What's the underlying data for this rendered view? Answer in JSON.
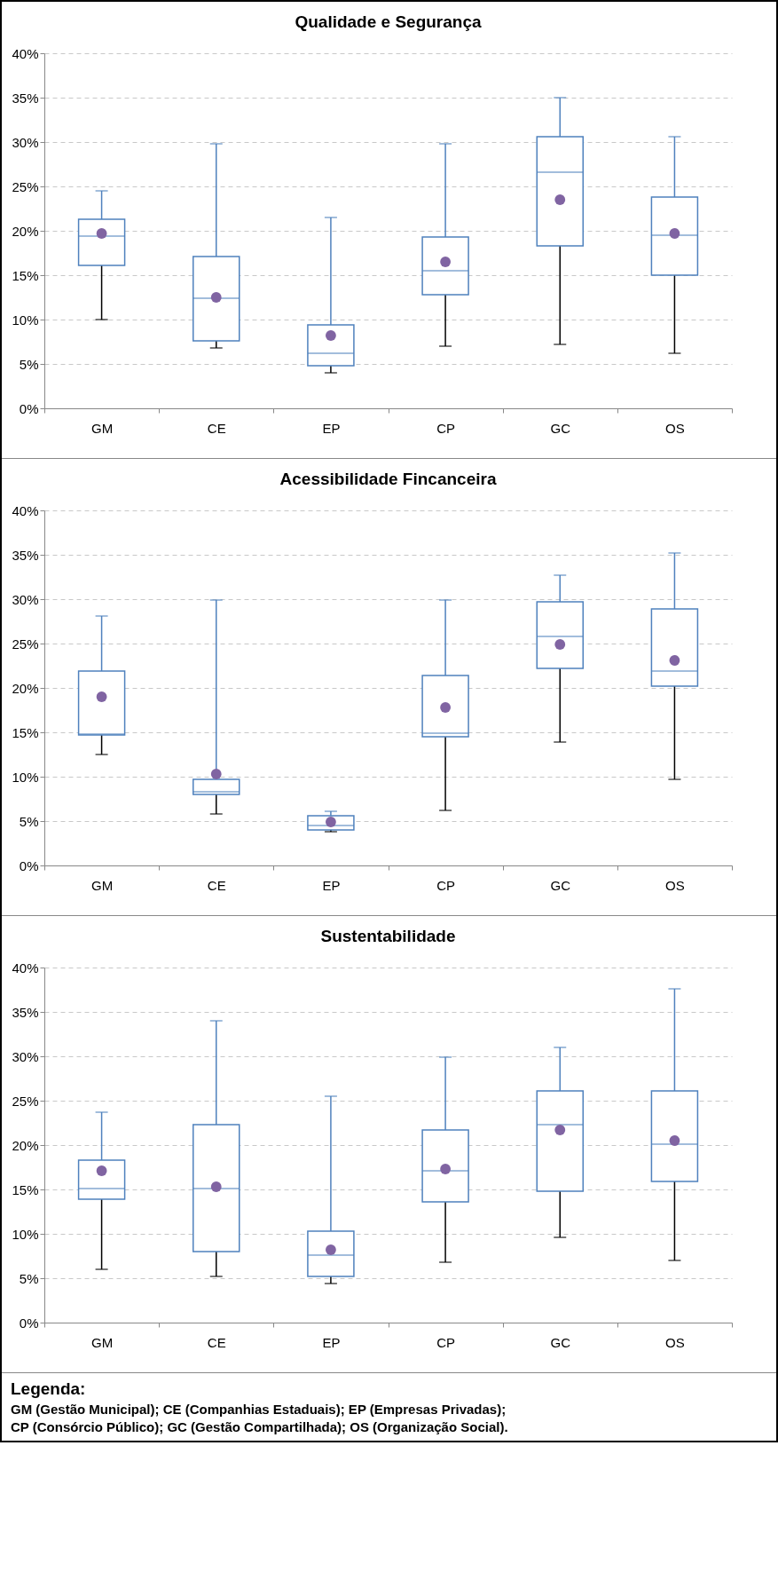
{
  "chart_data": [
    {
      "type": "box",
      "title": "Qualidade e Segurança",
      "categories": [
        "GM",
        "CE",
        "EP",
        "CP",
        "GC",
        "OS"
      ],
      "ylim": [
        0,
        40
      ],
      "yticks": [
        {
          "value": 0,
          "label": "0%"
        },
        {
          "value": 5,
          "label": "5%"
        },
        {
          "value": 10,
          "label": "10%"
        },
        {
          "value": 15,
          "label": "15%"
        },
        {
          "value": 20,
          "label": "20%"
        },
        {
          "value": 25,
          "label": "25%"
        },
        {
          "value": 30,
          "label": "30%"
        },
        {
          "value": 35,
          "label": "35%"
        },
        {
          "value": 40,
          "label": "40%"
        }
      ],
      "grid": "y",
      "series": [
        {
          "color": "#4f81bd",
          "boxes": [
            {
              "low": 10.0,
              "q1": 16.1,
              "median": 19.4,
              "q3": 21.3,
              "high": 24.5,
              "mean": 19.7
            },
            {
              "low": 6.8,
              "q1": 7.6,
              "median": 12.4,
              "q3": 17.1,
              "high": 29.8,
              "mean": 12.5
            },
            {
              "low": 4.0,
              "q1": 4.8,
              "median": 6.2,
              "q3": 9.4,
              "high": 21.5,
              "mean": 8.2
            },
            {
              "low": 7.0,
              "q1": 12.8,
              "median": 15.5,
              "q3": 19.3,
              "high": 29.8,
              "mean": 16.5
            },
            {
              "low": 7.2,
              "q1": 18.3,
              "median": 26.6,
              "q3": 30.6,
              "high": 35.0,
              "mean": 23.5
            },
            {
              "low": 6.2,
              "q1": 15.0,
              "median": 19.5,
              "q3": 23.8,
              "high": 30.6,
              "mean": 19.7
            }
          ]
        }
      ]
    },
    {
      "type": "box",
      "title": "Acessibilidade Fincanceira",
      "categories": [
        "GM",
        "CE",
        "EP",
        "CP",
        "GC",
        "OS"
      ],
      "ylim": [
        0,
        40
      ],
      "yticks": [
        {
          "value": 0,
          "label": "0%"
        },
        {
          "value": 5,
          "label": "5%"
        },
        {
          "value": 10,
          "label": "10%"
        },
        {
          "value": 15,
          "label": "15%"
        },
        {
          "value": 20,
          "label": "20%"
        },
        {
          "value": 25,
          "label": "25%"
        },
        {
          "value": 30,
          "label": "30%"
        },
        {
          "value": 35,
          "label": "35%"
        },
        {
          "value": 40,
          "label": "40%"
        }
      ],
      "grid": "y",
      "series": [
        {
          "color": "#4f81bd",
          "boxes": [
            {
              "low": 12.5,
              "q1": 14.7,
              "median": 14.8,
              "q3": 21.9,
              "high": 28.1,
              "mean": 19.0
            },
            {
              "low": 5.8,
              "q1": 8.0,
              "median": 8.3,
              "q3": 9.7,
              "high": 29.9,
              "mean": 10.3
            },
            {
              "low": 3.8,
              "q1": 4.0,
              "median": 4.5,
              "q3": 5.6,
              "high": 6.1,
              "mean": 4.9
            },
            {
              "low": 6.2,
              "q1": 14.5,
              "median": 14.9,
              "q3": 21.4,
              "high": 29.9,
              "mean": 17.8
            },
            {
              "low": 13.9,
              "q1": 22.2,
              "median": 25.8,
              "q3": 29.7,
              "high": 32.7,
              "mean": 24.9
            },
            {
              "low": 9.7,
              "q1": 20.2,
              "median": 21.9,
              "q3": 28.9,
              "high": 35.2,
              "mean": 23.1
            }
          ]
        }
      ]
    },
    {
      "type": "box",
      "title": "Sustentabilidade",
      "categories": [
        "GM",
        "CE",
        "EP",
        "CP",
        "GC",
        "OS"
      ],
      "ylim": [
        0,
        40
      ],
      "yticks": [
        {
          "value": 0,
          "label": "0%"
        },
        {
          "value": 5,
          "label": "5%"
        },
        {
          "value": 10,
          "label": "10%"
        },
        {
          "value": 15,
          "label": "15%"
        },
        {
          "value": 20,
          "label": "20%"
        },
        {
          "value": 25,
          "label": "25%"
        },
        {
          "value": 30,
          "label": "30%"
        },
        {
          "value": 35,
          "label": "35%"
        },
        {
          "value": 40,
          "label": "40%"
        }
      ],
      "grid": "y",
      "series": [
        {
          "color": "#4f81bd",
          "boxes": [
            {
              "low": 6.0,
              "q1": 13.9,
              "median": 15.1,
              "q3": 18.3,
              "high": 23.7,
              "mean": 17.1
            },
            {
              "low": 5.2,
              "q1": 8.0,
              "median": 15.1,
              "q3": 22.3,
              "high": 34.0,
              "mean": 15.3
            },
            {
              "low": 4.4,
              "q1": 5.2,
              "median": 7.6,
              "q3": 10.3,
              "high": 25.5,
              "mean": 8.2
            },
            {
              "low": 6.8,
              "q1": 13.6,
              "median": 17.1,
              "q3": 21.7,
              "high": 29.9,
              "mean": 17.3
            },
            {
              "low": 9.6,
              "q1": 14.8,
              "median": 22.3,
              "q3": 26.1,
              "high": 31.0,
              "mean": 21.7
            },
            {
              "low": 7.0,
              "q1": 15.9,
              "median": 20.1,
              "q3": 26.1,
              "high": 37.6,
              "mean": 20.5
            }
          ]
        }
      ],
      "annotations": [
        "Legenda:",
        "GM (Gestão Municipal); CE (Companhias Estaduais); EP (Empresas Privadas);",
        "CP (Consórcio Público); GC (Gestão Compartilhada); OS (Organização Social)."
      ]
    }
  ]
}
